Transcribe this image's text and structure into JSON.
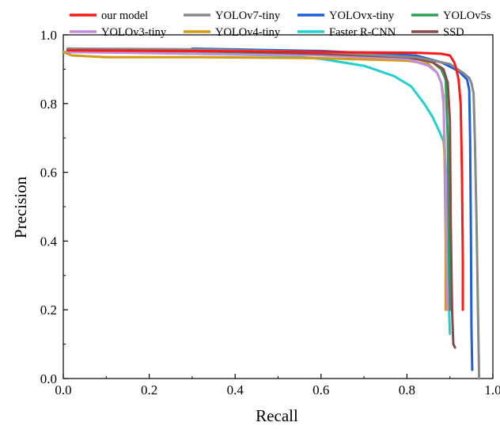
{
  "chart_data": {
    "type": "line",
    "title": "",
    "xlabel": "Recall",
    "ylabel": "Precision",
    "xlim": [
      0,
      1
    ],
    "ylim": [
      0,
      1
    ],
    "xticks": [
      "0.0",
      "0.2",
      "0.4",
      "0.6",
      "0.8",
      "1.0"
    ],
    "yticks": [
      "0.0",
      "0.2",
      "0.4",
      "0.6",
      "0.8",
      "1.0"
    ],
    "grid": false,
    "legend_position": "top",
    "series": [
      {
        "name": "our model",
        "color": "#ff1a1a",
        "x": [
          0.01,
          0.3,
          0.6,
          0.82,
          0.88,
          0.9,
          0.91,
          0.915,
          0.92,
          0.925,
          0.928,
          0.93,
          0.93
        ],
        "y": [
          0.955,
          0.953,
          0.95,
          0.948,
          0.945,
          0.94,
          0.92,
          0.9,
          0.87,
          0.8,
          0.6,
          0.35,
          0.2
        ]
      },
      {
        "name": "YOLOv7-tiny",
        "color": "#888888",
        "x": [
          0.01,
          0.3,
          0.6,
          0.82,
          0.9,
          0.93,
          0.945,
          0.95,
          0.955,
          0.958,
          0.962,
          0.966,
          0.968
        ],
        "y": [
          0.96,
          0.958,
          0.95,
          0.935,
          0.915,
          0.89,
          0.875,
          0.86,
          0.83,
          0.7,
          0.45,
          0.15,
          0.0
        ]
      },
      {
        "name": "YOLOvx-tiny",
        "color": "#1f5fd6",
        "x": [
          0.3,
          0.6,
          0.82,
          0.88,
          0.92,
          0.94,
          0.945,
          0.947,
          0.949,
          0.95,
          0.952
        ],
        "y": [
          0.96,
          0.953,
          0.94,
          0.92,
          0.895,
          0.87,
          0.84,
          0.7,
          0.4,
          0.15,
          0.025
        ]
      },
      {
        "name": "YOLOv5s",
        "color": "#2ca058",
        "x": [
          0.01,
          0.3,
          0.6,
          0.8,
          0.86,
          0.88,
          0.89,
          0.895,
          0.898,
          0.9
        ],
        "y": [
          0.955,
          0.952,
          0.945,
          0.935,
          0.92,
          0.9,
          0.87,
          0.7,
          0.4,
          0.2
        ]
      },
      {
        "name": "YOLOv3-tiny",
        "color": "#c28fe0",
        "x": [
          0.01,
          0.3,
          0.6,
          0.8,
          0.85,
          0.87,
          0.88,
          0.885,
          0.89,
          0.892,
          0.895
        ],
        "y": [
          0.95,
          0.945,
          0.94,
          0.93,
          0.91,
          0.89,
          0.86,
          0.8,
          0.6,
          0.35,
          0.2
        ]
      },
      {
        "name": "YOLOv4-tiny",
        "color": "#d49a14",
        "x": [
          0.0,
          0.02,
          0.1,
          0.3,
          0.6,
          0.8,
          0.85,
          0.87,
          0.88,
          0.885,
          0.888,
          0.89,
          0.89
        ],
        "y": [
          0.95,
          0.94,
          0.935,
          0.935,
          0.932,
          0.925,
          0.915,
          0.89,
          0.86,
          0.82,
          0.6,
          0.4,
          0.2
        ]
      },
      {
        "name": "Faster R-CNN",
        "color": "#22d0d0",
        "x": [
          0.0,
          0.1,
          0.3,
          0.5,
          0.6,
          0.7,
          0.77,
          0.81,
          0.84,
          0.86,
          0.875,
          0.885,
          0.89,
          0.893,
          0.896,
          0.898,
          0.9
        ],
        "y": [
          0.95,
          0.95,
          0.945,
          0.94,
          0.93,
          0.91,
          0.88,
          0.85,
          0.8,
          0.76,
          0.72,
          0.69,
          0.62,
          0.5,
          0.35,
          0.2,
          0.13
        ]
      },
      {
        "name": "SSD",
        "color": "#8b4a4a",
        "x": [
          0.01,
          0.3,
          0.6,
          0.8,
          0.86,
          0.885,
          0.895,
          0.9,
          0.902,
          0.905,
          0.908,
          0.912
        ],
        "y": [
          0.96,
          0.955,
          0.945,
          0.935,
          0.92,
          0.9,
          0.86,
          0.75,
          0.45,
          0.2,
          0.1,
          0.09
        ]
      }
    ]
  }
}
